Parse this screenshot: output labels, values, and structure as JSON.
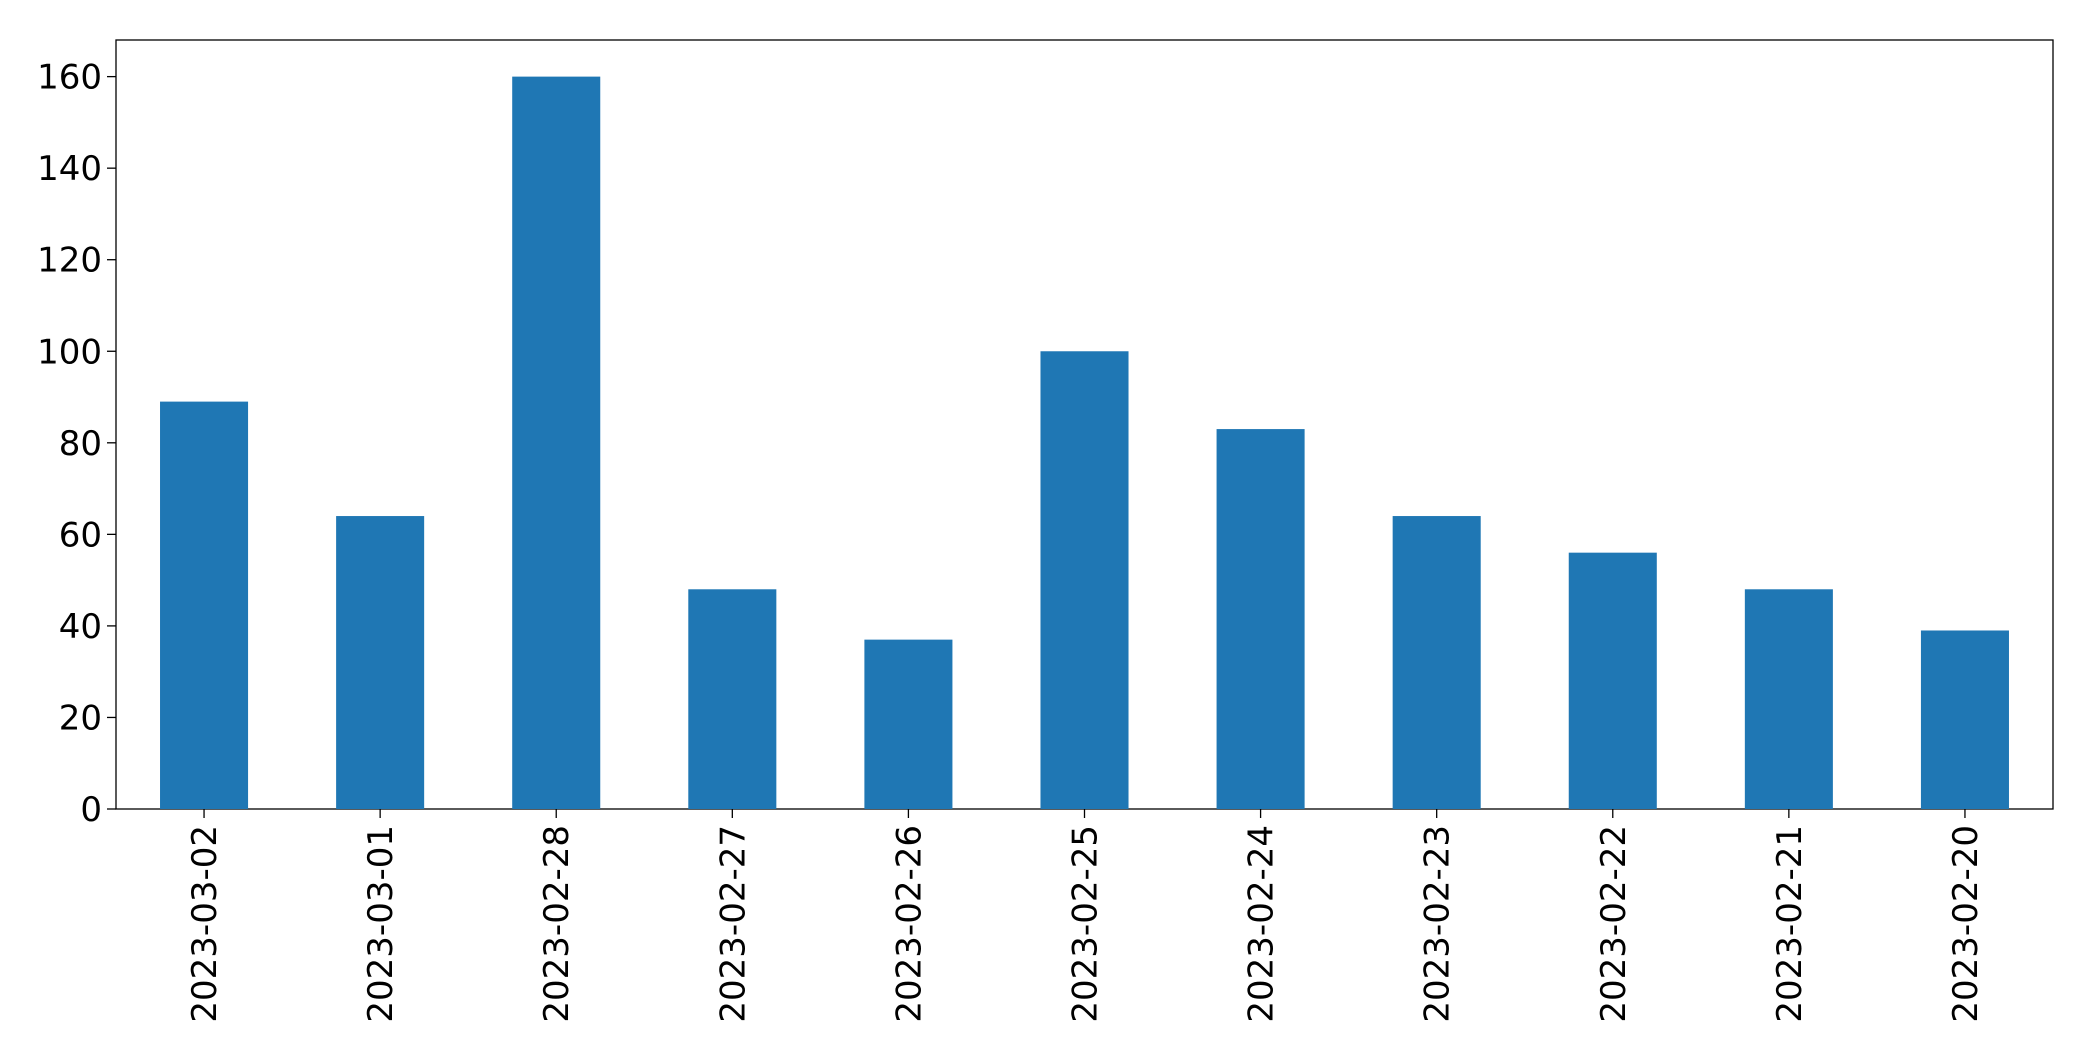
{
  "chart_data": {
    "type": "bar",
    "categories": [
      "2023-03-02",
      "2023-03-01",
      "2023-02-28",
      "2023-02-27",
      "2023-02-26",
      "2023-02-25",
      "2023-02-24",
      "2023-02-23",
      "2023-02-22",
      "2023-02-21",
      "2023-02-20"
    ],
    "values": [
      89,
      64,
      160,
      48,
      37,
      100,
      83,
      64,
      56,
      48,
      39
    ],
    "color": "#1f77b4",
    "ylim": [
      0,
      168
    ],
    "yticks": [
      0,
      20,
      40,
      60,
      80,
      100,
      120,
      140,
      160
    ],
    "grid": false
  }
}
